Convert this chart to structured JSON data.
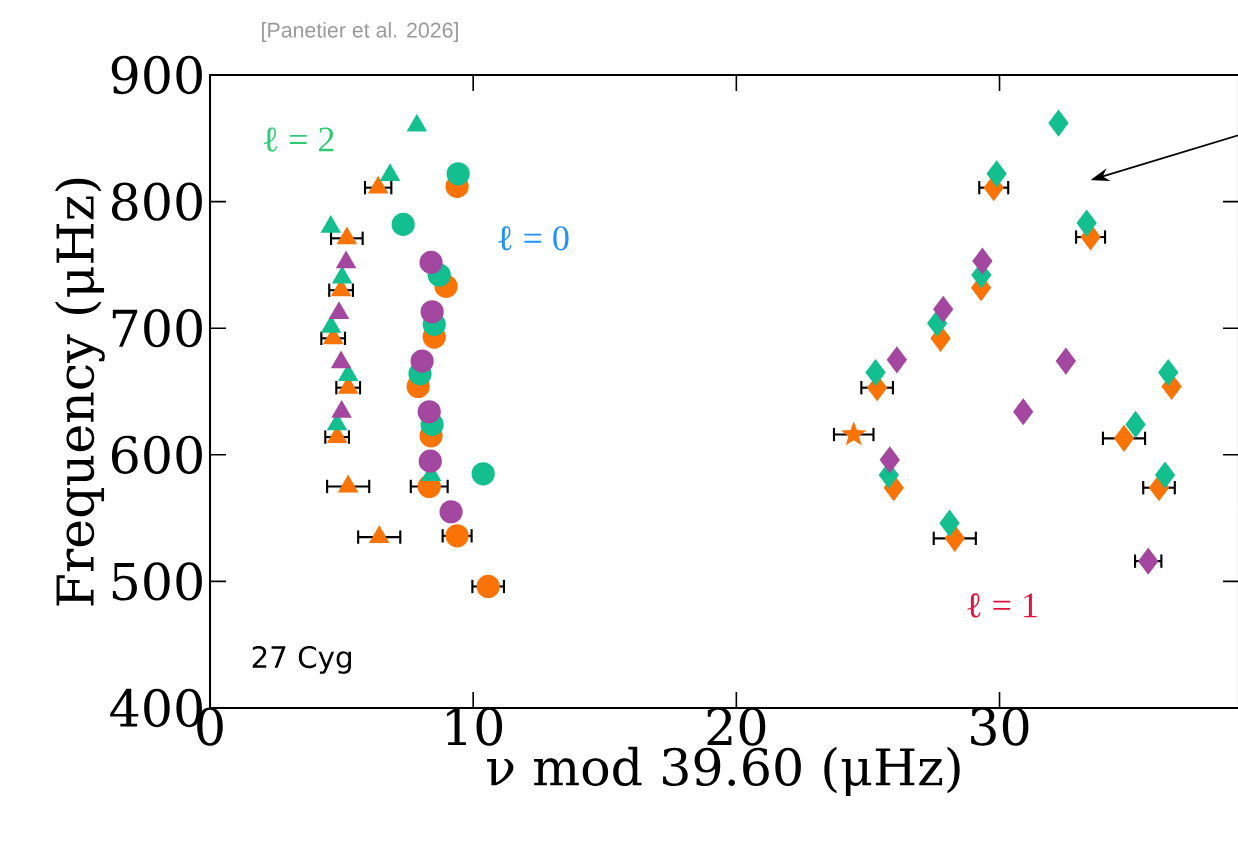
{
  "chart_data": {
    "type": "scatter",
    "xlabel": "ν mod 39.60 (μHz)",
    "ylabel": "Frequency (μHz)",
    "xlim": [
      0,
      39.1
    ],
    "ylim": [
      400,
      900
    ],
    "xticks": [
      0,
      10,
      20,
      30
    ],
    "yticks": [
      400,
      500,
      600,
      700,
      800,
      900
    ],
    "annotations": [
      "[Panetier et al. 2026]",
      "ℓ = 2",
      "ℓ = 0",
      "ℓ = 1",
      "27 Cyg"
    ],
    "series": [
      {
        "color": "#f97306",
        "marker": "triangle",
        "x": [
          6.39,
          5.2,
          5.25,
          6.43,
          4.98,
          4.68,
          5.25,
          4.83
        ],
        "values": [
          811,
          771,
          575,
          535,
          730,
          692,
          653,
          614
        ],
        "xerrors": [
          0.5,
          0.6,
          0.8,
          0.8,
          0.45,
          0.45,
          0.45,
          0.45
        ]
      },
      {
        "color": "#f97306",
        "marker": "circle",
        "x": [
          9.39,
          9.39,
          10.57,
          8.97,
          8.52,
          7.91,
          8.4,
          8.33
        ],
        "values": [
          812,
          536,
          496,
          733,
          693,
          654,
          615,
          575
        ],
        "xerrors": [
          null,
          0.55,
          0.6,
          null,
          null,
          null,
          null,
          0.7
        ]
      },
      {
        "color": "#f97306",
        "marker": "diamond",
        "x": [
          29.78,
          33.46,
          29.3,
          27.76,
          25.35,
          36.54,
          25.98,
          34.73,
          36.06,
          28.3
        ],
        "values": [
          811,
          772,
          732,
          692,
          653,
          654,
          574,
          613,
          574,
          534
        ],
        "xerrors": [
          0.55,
          0.55,
          null,
          null,
          0.6,
          null,
          null,
          0.8,
          0.6,
          0.8
        ]
      },
      {
        "color": "#f97306",
        "marker": "star",
        "x": [
          24.46
        ],
        "values": [
          616
        ],
        "xerrors": [
          0.75
        ]
      },
      {
        "color": "#13bf8f",
        "marker": "triangle",
        "x": [
          7.86,
          6.84,
          4.59,
          5.02,
          4.6,
          5.25,
          4.83,
          8.4
        ],
        "values": [
          860,
          821,
          780,
          740,
          701,
          663,
          624,
          584
        ]
      },
      {
        "color": "#13bf8f",
        "marker": "circle",
        "x": [
          9.43,
          7.34,
          8.71,
          8.52,
          7.98,
          8.44,
          10.38
        ],
        "values": [
          822,
          782,
          742,
          703,
          664,
          624,
          585
        ]
      },
      {
        "color": "#13bf8f",
        "marker": "diamond",
        "x": [
          32.24,
          29.89,
          33.31,
          29.31,
          27.63,
          25.29,
          36.41,
          25.79,
          35.17,
          36.29,
          28.1
        ],
        "values": [
          862,
          822,
          783,
          742,
          704,
          665,
          665,
          584,
          624,
          584,
          546
        ]
      },
      {
        "color": "#a347a0",
        "marker": "triangle",
        "x": [
          5.17,
          4.9,
          4.98,
          5.0
        ],
        "values": [
          752,
          712,
          673,
          634
        ]
      },
      {
        "color": "#a347a0",
        "marker": "circle",
        "x": [
          8.4,
          8.44,
          8.06,
          8.33,
          8.37,
          9.16
        ],
        "values": [
          752,
          713,
          674,
          634,
          595,
          555
        ]
      },
      {
        "color": "#a347a0",
        "marker": "diamond",
        "x": [
          29.35,
          27.86,
          26.1,
          32.52,
          25.83,
          30.9,
          35.65
        ],
        "values": [
          753,
          715,
          675,
          674,
          596,
          634,
          516
        ],
        "xerrors": [
          null,
          null,
          null,
          null,
          null,
          null,
          0.5
        ]
      }
    ]
  }
}
